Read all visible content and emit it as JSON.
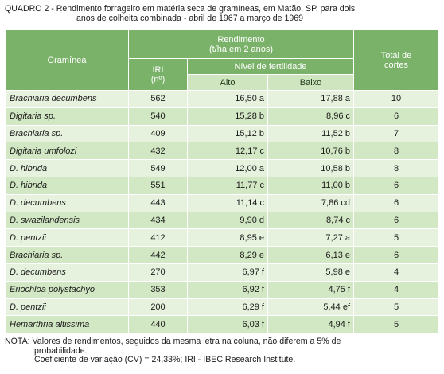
{
  "caption": {
    "line1": "QUADRO 2 - Rendimento forrageiro em matéria seca de gramíneas, em Matão, SP, para dois",
    "line2": "anos de colheita combinada - abril de 1967 a março de 1969"
  },
  "header": {
    "graminea": "Gramínea",
    "rendimento_line1": "Rendimento",
    "rendimento_line2": "(t/ha em 2 anos)",
    "iri_line1": "IRI",
    "iri_line2": "(nº)",
    "nivel": "Nível de fertilidade",
    "alto": "Alto",
    "baixo": "Baixo",
    "total_line1": "Total de",
    "total_line2": "cortes"
  },
  "rows": [
    {
      "species": "Brachiaria decumbens",
      "iri": "562",
      "alto": "16,50 a",
      "baixo": "17,88 a",
      "cortes": "10"
    },
    {
      "species": "Digitaria sp.",
      "iri": "540",
      "alto": "15,28 b",
      "baixo": "8,96 c",
      "cortes": "6"
    },
    {
      "species": "Brachiaria sp.",
      "iri": "409",
      "alto": "15,12 b",
      "baixo": "11,52 b",
      "cortes": "7"
    },
    {
      "species": "Digitaria umfolozi",
      "iri": "432",
      "alto": "12,17 c",
      "baixo": "10,76 b",
      "cortes": "8"
    },
    {
      "species": "D. hibrida",
      "iri": "549",
      "alto": "12,00 a",
      "baixo": "10,58 b",
      "cortes": "8"
    },
    {
      "species": "D. hibrida",
      "iri": "551",
      "alto": "11,77 c",
      "baixo": "11,00 b",
      "cortes": "6"
    },
    {
      "species": "D. decumbens",
      "iri": "443",
      "alto": "11,14 c",
      "baixo": "7,86 cd",
      "cortes": "6"
    },
    {
      "species": "D. swazilandensis",
      "iri": "434",
      "alto": "9,90 d",
      "baixo": "8,74 c",
      "cortes": "6"
    },
    {
      "species": "D. pentzii",
      "iri": "412",
      "alto": "8,95 e",
      "baixo": "7,27 a",
      "cortes": "5"
    },
    {
      "species": "Brachiaria sp.",
      "iri": "442",
      "alto": "8,29 e",
      "baixo": "6,13 e",
      "cortes": "6"
    },
    {
      "species": "D. decumbens",
      "iri": "270",
      "alto": "6,97 f",
      "baixo": "5,98 e",
      "cortes": "4"
    },
    {
      "species": "Eriochloa polystachyo",
      "iri": "353",
      "alto": "6,92 f",
      "baixo": "4,75 f",
      "cortes": "4"
    },
    {
      "species": "D. pentzii",
      "iri": "200",
      "alto": "6,29 f",
      "baixo": "5,44 ef",
      "cortes": "5"
    },
    {
      "species": "Hemarthria altissima",
      "iri": "440",
      "alto": "6,03 f",
      "baixo": "4,94 f",
      "cortes": "5"
    }
  ],
  "note": {
    "line1": "NOTA: Valores de rendimentos, seguidos da mesma letra na coluna, não diferem a 5% de",
    "line2": "probabilidade.",
    "line3": "Coeficiente de variação (CV) = 24,33%; IRI - IBEC Research Institute."
  },
  "colors": {
    "header_dark": "#7bb26a",
    "header_light": "#cfe5c0",
    "row_light": "#e6f2dd",
    "row_mid": "#d2e7c4"
  }
}
